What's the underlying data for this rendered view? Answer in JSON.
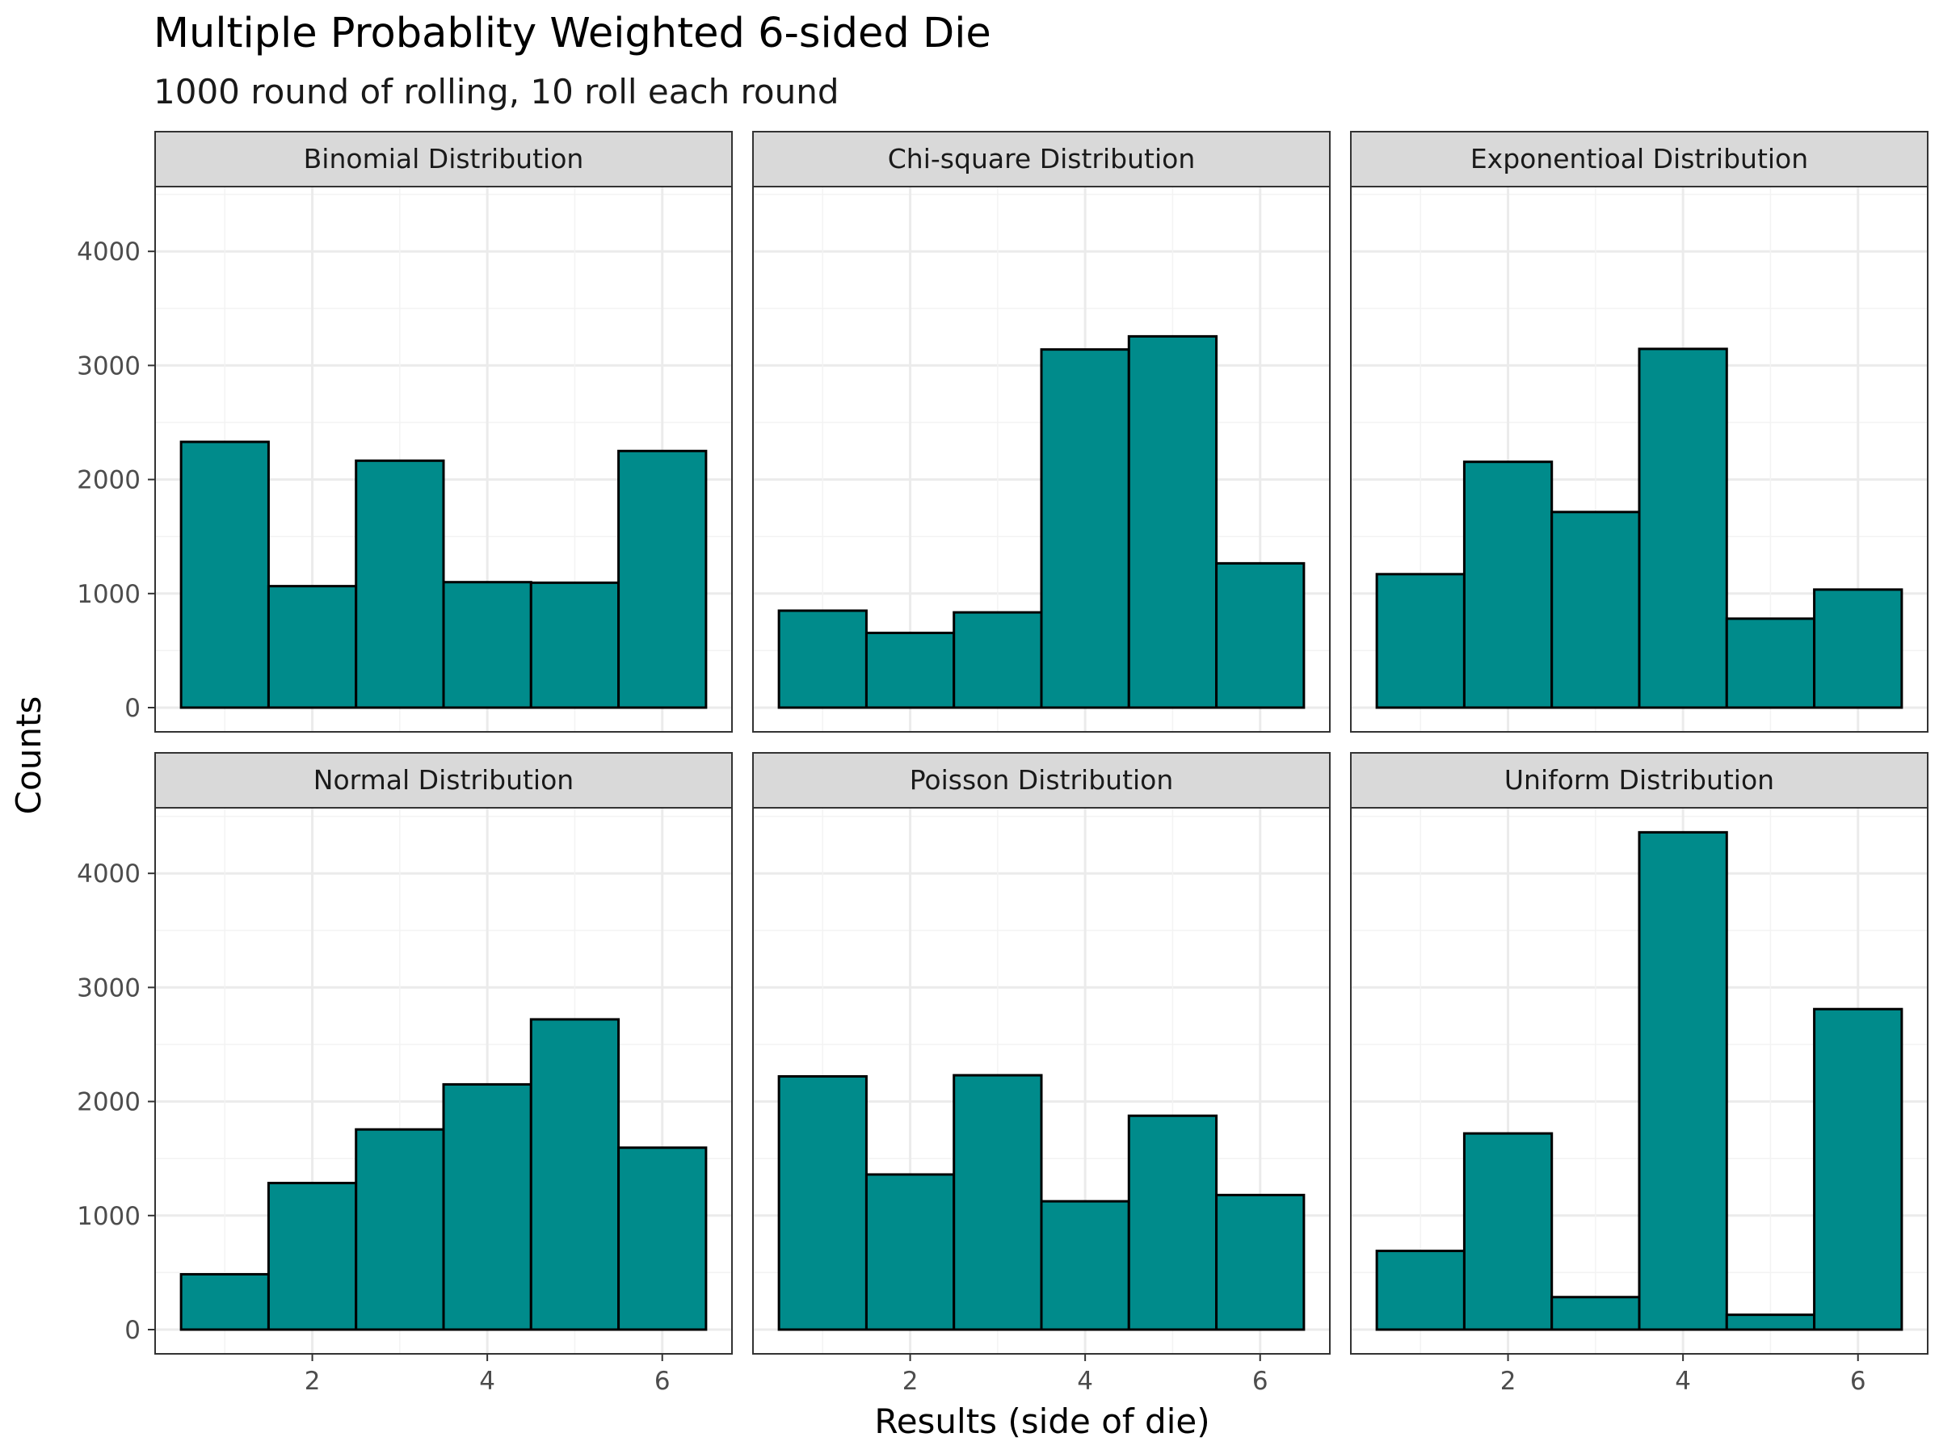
{
  "chart_data": {
    "type": "bar",
    "title": "Multiple Probablity Weighted 6-sided Die",
    "subtitle": "1000 round of rolling, 10 roll each round",
    "xlabel": "Results (side of die)",
    "ylabel": "Counts",
    "x_ticks": [
      "2",
      "4",
      "6"
    ],
    "y_ticks": [
      "0",
      "1000",
      "2000",
      "3000",
      "4000"
    ],
    "xlim": [
      0.5,
      6.5
    ],
    "ylim": [
      0,
      4500
    ],
    "grid": true,
    "bar_color": "#008b8b",
    "bar_outline": "#000000",
    "categories": [
      1,
      2,
      3,
      4,
      5,
      6
    ],
    "facets": [
      {
        "name": "Binomial Distribution",
        "values": [
          2330,
          1065,
          2165,
          1100,
          1095,
          2250
        ]
      },
      {
        "name": "Chi-square Distribution",
        "values": [
          850,
          655,
          835,
          3140,
          3255,
          1265
        ]
      },
      {
        "name": "Exponentioal Distribution",
        "values": [
          1170,
          2155,
          1715,
          3145,
          780,
          1035
        ]
      },
      {
        "name": "Normal Distribution",
        "values": [
          485,
          1285,
          1755,
          2150,
          2720,
          1595
        ]
      },
      {
        "name": "Poisson Distribution",
        "values": [
          2220,
          1360,
          2230,
          1125,
          1875,
          1180
        ]
      },
      {
        "name": "Uniform Distribution",
        "values": [
          690,
          1720,
          285,
          4360,
          130,
          2810
        ]
      }
    ]
  }
}
